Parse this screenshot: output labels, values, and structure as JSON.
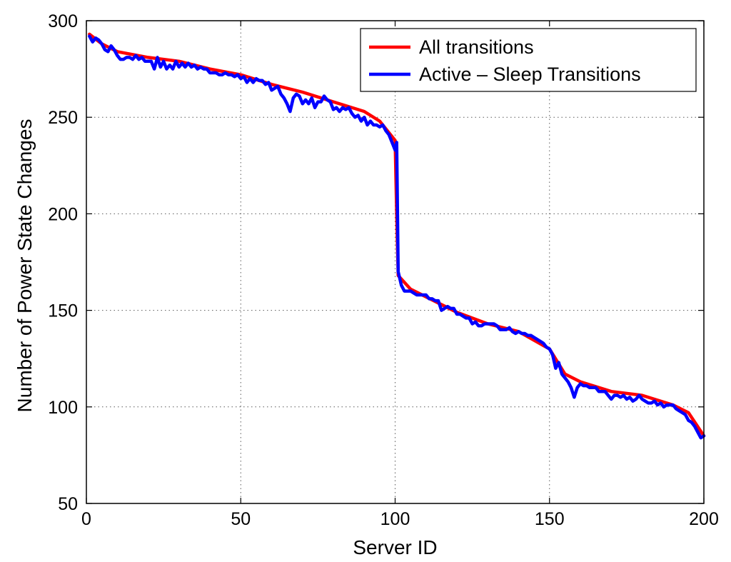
{
  "chart_data": {
    "type": "line",
    "title": "",
    "xlabel": "Server ID",
    "ylabel": "Number of Power State Changes",
    "xlim": [
      0,
      200
    ],
    "ylim": [
      50,
      300
    ],
    "xticks": [
      0,
      50,
      100,
      150,
      200
    ],
    "yticks": [
      50,
      100,
      150,
      200,
      250,
      300
    ],
    "grid": true,
    "legend_position": "top-right",
    "series": [
      {
        "name": "All transitions",
        "color": "#ff0000",
        "x": [
          1,
          5,
          10,
          20,
          30,
          40,
          50,
          60,
          70,
          80,
          90,
          95,
          100,
          100.5,
          101,
          105,
          110,
          120,
          130,
          140,
          150,
          155,
          160,
          170,
          180,
          190,
          195,
          200
        ],
        "y": [
          293,
          288,
          284,
          281,
          279,
          275,
          272,
          267,
          263,
          258,
          253,
          248,
          238,
          200,
          168,
          161,
          157,
          149,
          143,
          139,
          130,
          117,
          113,
          108,
          106,
          101,
          97,
          85
        ]
      },
      {
        "name": "Active – Sleep Transitions",
        "color": "#0000ff",
        "x": [
          1,
          2,
          3,
          4,
          5,
          6,
          7,
          8,
          9,
          10,
          11,
          12,
          13,
          14,
          15,
          16,
          17,
          18,
          19,
          20,
          21,
          22,
          23,
          24,
          25,
          26,
          27,
          28,
          29,
          30,
          31,
          32,
          33,
          34,
          35,
          36,
          37,
          38,
          39,
          40,
          41,
          42,
          43,
          44,
          45,
          46,
          47,
          48,
          49,
          50,
          51,
          52,
          53,
          54,
          55,
          56,
          57,
          58,
          59,
          60,
          61,
          62,
          63,
          64,
          65,
          66,
          67,
          68,
          69,
          70,
          71,
          72,
          73,
          74,
          75,
          76,
          77,
          78,
          79,
          80,
          81,
          82,
          83,
          84,
          85,
          86,
          87,
          88,
          89,
          90,
          91,
          92,
          93,
          94,
          95,
          96,
          97,
          98,
          99,
          100,
          100.5,
          101,
          102,
          103,
          104,
          105,
          106,
          107,
          108,
          109,
          110,
          111,
          112,
          113,
          114,
          115,
          116,
          117,
          118,
          119,
          120,
          121,
          122,
          123,
          124,
          125,
          126,
          127,
          128,
          129,
          130,
          131,
          132,
          133,
          134,
          135,
          136,
          137,
          138,
          139,
          140,
          141,
          142,
          143,
          144,
          145,
          146,
          147,
          148,
          149,
          150,
          151,
          152,
          153,
          154,
          155,
          156,
          157,
          158,
          159,
          160,
          161,
          162,
          163,
          164,
          165,
          166,
          167,
          168,
          169,
          170,
          171,
          172,
          173,
          174,
          175,
          176,
          177,
          178,
          179,
          180,
          181,
          182,
          183,
          184,
          185,
          186,
          187,
          188,
          189,
          190,
          191,
          192,
          193,
          194,
          195,
          196,
          197,
          198,
          199,
          200
        ],
        "y": [
          292,
          289,
          291,
          290,
          288,
          285,
          284,
          287,
          285,
          282,
          280,
          280,
          281,
          281,
          280,
          282,
          280,
          281,
          279,
          279,
          279,
          275,
          281,
          276,
          279,
          275,
          277,
          275,
          279,
          276,
          278,
          276,
          278,
          276,
          277,
          275,
          276,
          275,
          275,
          273,
          273,
          273,
          272,
          272,
          273,
          272,
          272,
          271,
          272,
          270,
          271,
          268,
          270,
          268,
          270,
          269,
          269,
          267,
          268,
          264,
          265,
          266,
          262,
          260,
          257,
          253,
          260,
          262,
          261,
          257,
          259,
          257,
          260,
          255,
          258,
          258,
          261,
          259,
          258,
          254,
          255,
          253,
          255,
          254,
          255,
          252,
          250,
          251,
          248,
          250,
          246,
          248,
          246,
          246,
          245,
          246,
          243,
          241,
          237,
          233,
          237,
          170,
          163,
          160,
          160,
          160,
          159,
          158,
          158,
          158,
          158,
          156,
          156,
          155,
          155,
          150,
          151,
          152,
          151,
          151,
          148,
          148,
          147,
          146,
          146,
          143,
          144,
          142,
          142,
          143,
          143,
          143,
          143,
          142,
          140,
          140,
          140,
          141,
          139,
          138,
          139,
          138,
          138,
          137,
          137,
          136,
          135,
          134,
          133,
          131,
          130,
          127,
          120,
          123,
          117,
          115,
          113,
          110,
          105,
          110,
          112,
          111,
          111,
          110,
          110,
          110,
          108,
          108,
          108,
          106,
          104,
          106,
          106,
          105,
          106,
          104,
          105,
          103,
          104,
          106,
          104,
          103,
          102,
          102,
          103,
          101,
          102,
          100,
          101,
          101,
          101,
          99,
          98,
          97,
          96,
          93,
          92,
          90,
          87,
          84,
          85
        ]
      }
    ]
  }
}
